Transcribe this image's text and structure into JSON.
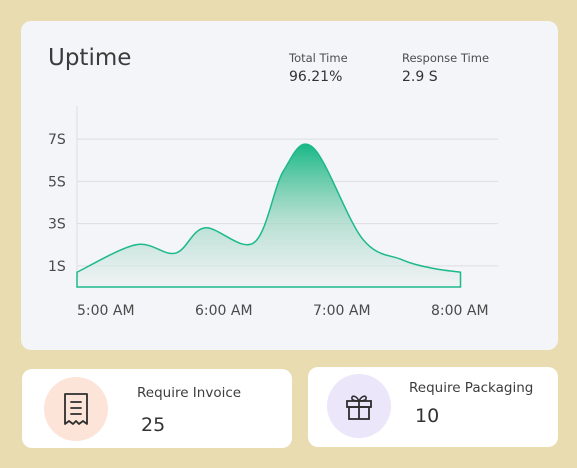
{
  "main": {
    "title": "Uptime",
    "stats": [
      {
        "label": "Total Time",
        "value": "96.21%"
      },
      {
        "label": "Response Time",
        "value": "2.9 S"
      }
    ]
  },
  "chart_data": {
    "type": "area",
    "title": "Uptime",
    "xlabel": "",
    "ylabel": "",
    "y_ticks": [
      "7S",
      "5S",
      "3S",
      "1S"
    ],
    "x_ticks": [
      "5:00 AM",
      "6:00 AM",
      "7:00 AM",
      "8:00 AM"
    ],
    "ylim": [
      0,
      8
    ],
    "series": [
      {
        "x": [
          "5:00 AM",
          "5:30 AM",
          "5:50 AM",
          "6:05 AM",
          "6:30 AM",
          "6:45 AM",
          "7:00 AM",
          "7:25 AM",
          "7:45 AM",
          "8:00 AM",
          "8:15 AM"
        ],
        "values": [
          0.7,
          2.0,
          1.6,
          2.8,
          2.1,
          5.5,
          6.6,
          2.3,
          1.3,
          0.9,
          0.7
        ]
      }
    ],
    "line_color": "#1db98a",
    "fill_top_color": "#18b884",
    "grid": true
  },
  "cards": {
    "invoice": {
      "label": "Require Invoice",
      "value": "25",
      "icon": "receipt-icon",
      "icon_bg": "#fde4d8"
    },
    "packaging": {
      "label": "Require Packaging",
      "value": "10",
      "icon": "gift-icon",
      "icon_bg": "#ece6fb"
    }
  }
}
